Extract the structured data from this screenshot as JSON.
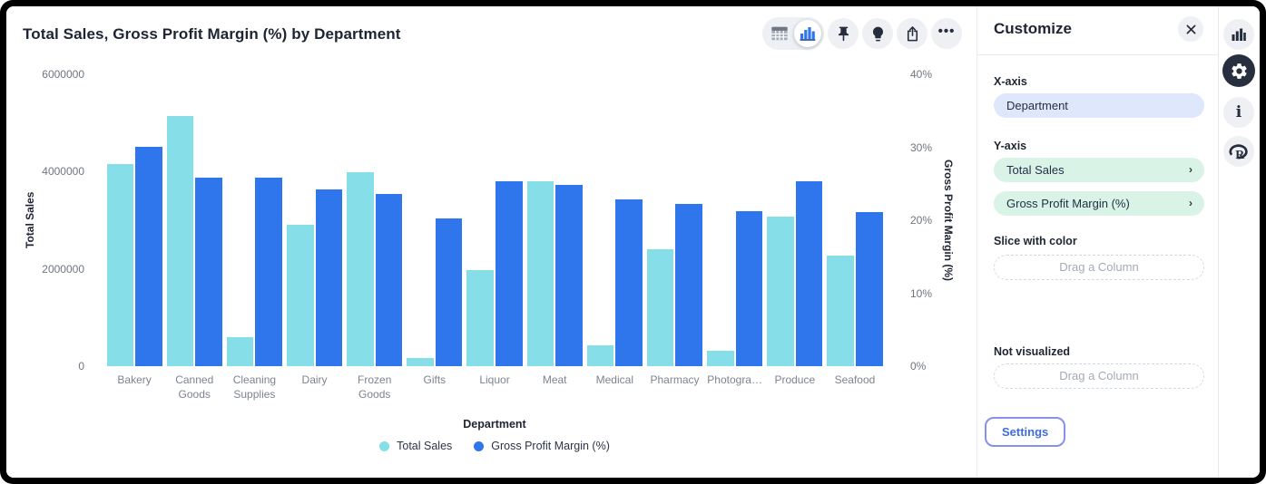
{
  "chart_panel": {
    "title": "Total Sales, Gross Profit Margin (%) by Department",
    "toolbar": {
      "view_toggle": {
        "options": [
          "table-view",
          "chart-view"
        ],
        "active": "chart-view"
      },
      "buttons": [
        "pin",
        "lightbulb",
        "share",
        "more-options"
      ]
    }
  },
  "chart_data": {
    "type": "bar",
    "title": "Total Sales, Gross Profit Margin (%) by Department",
    "categories": [
      "Bakery",
      "Canned Goods",
      "Cleaning Supplies",
      "Dairy",
      "Frozen Goods",
      "Gifts",
      "Liquor",
      "Meat",
      "Medical",
      "Pharmacy",
      "Photogra…",
      "Produce",
      "Seafood"
    ],
    "series": [
      {
        "name": "Total Sales",
        "axis": "left",
        "color": "#86DEE8",
        "values": [
          4150000,
          5150000,
          600000,
          2900000,
          3980000,
          170000,
          1980000,
          3810000,
          420000,
          2410000,
          320000,
          3070000,
          2270000
        ]
      },
      {
        "name": "Gross Profit Margin (%)",
        "axis": "right",
        "color": "#2F76EC",
        "values": [
          30.1,
          25.9,
          25.8,
          24.2,
          23.6,
          20.2,
          25.4,
          24.8,
          22.9,
          22.3,
          21.3,
          25.3,
          21.1
        ]
      }
    ],
    "left_axis": {
      "label": "Total Sales",
      "min": 0,
      "max": 6000000,
      "ticks": [
        "0",
        "2000000",
        "4000000",
        "6000000"
      ]
    },
    "right_axis": {
      "label": "Gross Profit Margin (%)",
      "min": 0,
      "max": 40,
      "ticks": [
        "0%",
        "10%",
        "20%",
        "30%",
        "40%"
      ]
    },
    "x_axis_label": "Department",
    "legend": [
      {
        "label": "Total Sales",
        "color": "#86DEE8"
      },
      {
        "label": "Gross Profit Margin (%)",
        "color": "#2F76EC"
      }
    ],
    "grid": false,
    "legend_position": "bottom"
  },
  "customize_panel": {
    "title": "Customize",
    "close_icon": "close",
    "sections": {
      "x_axis": {
        "label": "X-axis",
        "pill": "Department"
      },
      "y_axis": {
        "label": "Y-axis",
        "pills": [
          "Total Sales",
          "Gross Profit Margin (%)"
        ],
        "chevron": "›"
      },
      "slice": {
        "label": "Slice with color",
        "placeholder": "Drag a Column"
      },
      "not_visualized": {
        "label": "Not visualized",
        "placeholder": "Drag a Column"
      }
    },
    "settings_button": "Settings"
  },
  "icon_rail": {
    "icons": [
      "bar-chart",
      "settings-gear",
      "info",
      "r-logo"
    ],
    "active": "settings-gear"
  },
  "colors": {
    "sales_series": "#86DEE8",
    "margin_series": "#2F76EC",
    "x_pill_bg": "#DFE7FC",
    "y_pill_bg": "#D9F3E6",
    "accent_blue": "#3E6CE2",
    "icon_dark": "#252D3D"
  }
}
